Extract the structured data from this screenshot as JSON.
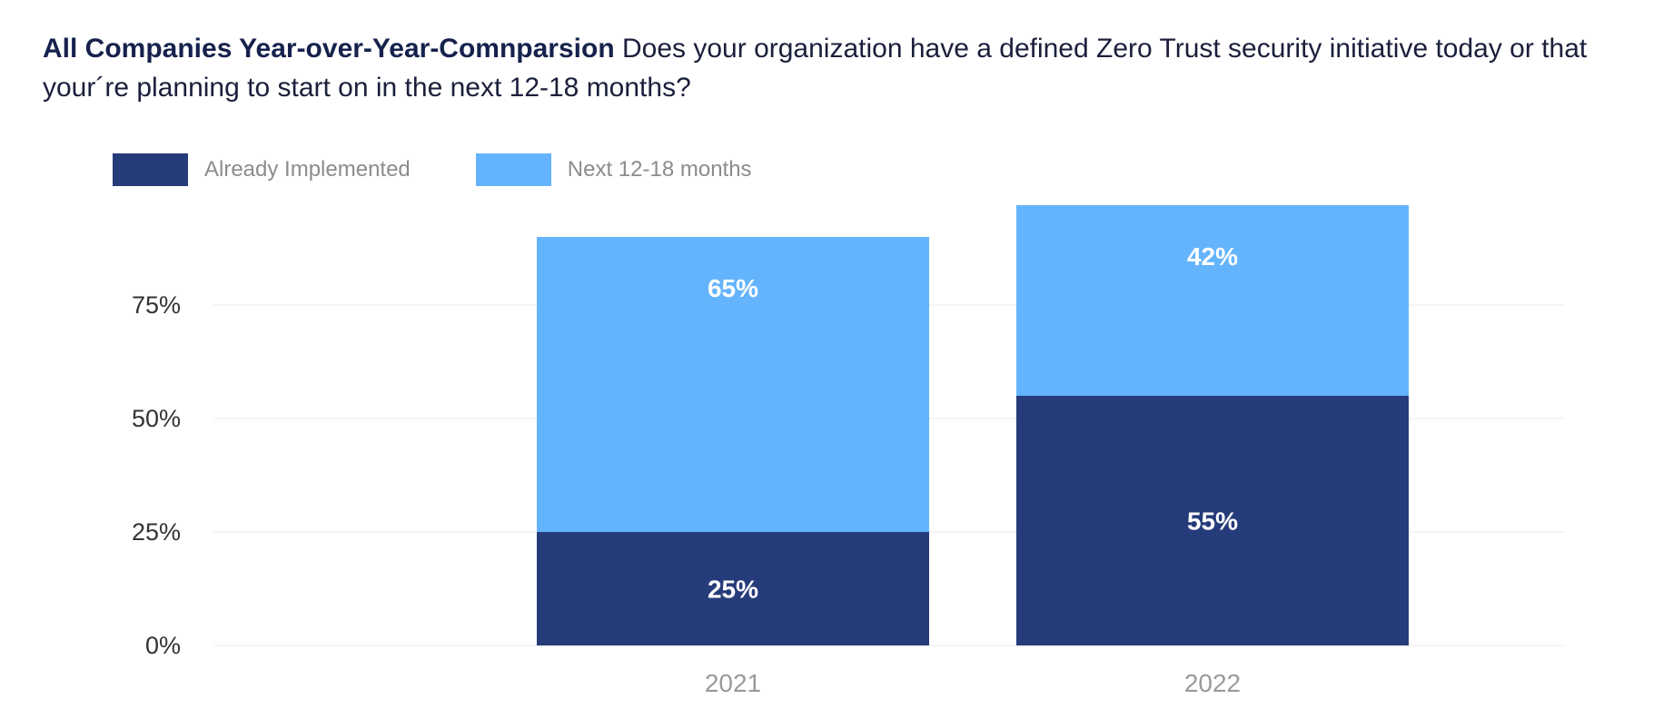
{
  "header": {
    "title_bold": "All Companies Year-over-Year-Comnparsion",
    "question": "Does your organization have a defined Zero Trust security initiative today or that your´re planning to start on in the next 12-18 months?"
  },
  "chart_data": {
    "type": "bar",
    "stacked": true,
    "title": "All Companies Year-over-Year-Comnparsion",
    "categories": [
      "2021",
      "2022"
    ],
    "series": [
      {
        "name": "Already Implemented",
        "values": [
          25,
          55
        ],
        "labels": [
          "25%",
          "55%"
        ],
        "color": "#263b7a"
      },
      {
        "name": "Next 12-18 months",
        "values": [
          65,
          42
        ],
        "labels": [
          "65%",
          "42%"
        ],
        "color": "#64b4fd"
      }
    ],
    "y_ticks": [
      "0%",
      "25%",
      "50%",
      "75%"
    ],
    "y_tick_values": [
      0,
      25,
      50,
      75
    ],
    "ylim": [
      0,
      85
    ],
    "grid": true,
    "legend_placement": "top-left",
    "label_color": "#ffffff",
    "axis_text_color": "#9a9a9a",
    "tick_text_color": "#333333",
    "grid_color": "#ebebeb"
  }
}
